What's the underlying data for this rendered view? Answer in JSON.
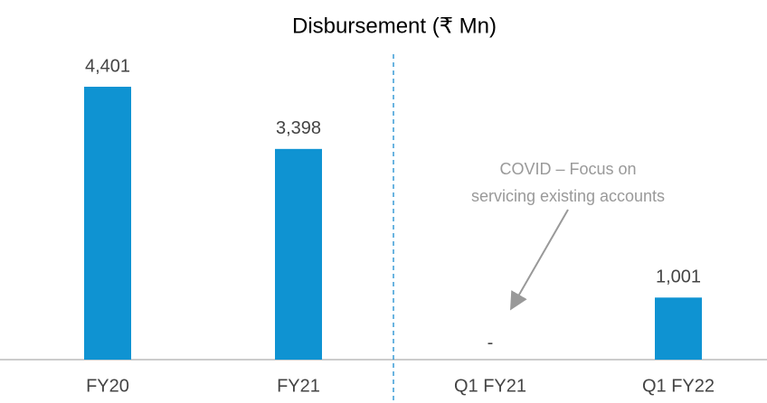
{
  "chart_data": {
    "type": "bar",
    "title": "Disbursement (₹ Mn)",
    "categories": [
      "FY20",
      "FY21",
      "Q1 FY21",
      "Q1 FY22"
    ],
    "values": [
      4401,
      3398,
      0,
      1001
    ],
    "value_labels": [
      "4,401",
      "3,398",
      "-",
      "1,001"
    ],
    "color": "#0f93d2",
    "annotation": [
      "COVID – Focus on",
      "servicing existing accounts"
    ]
  }
}
